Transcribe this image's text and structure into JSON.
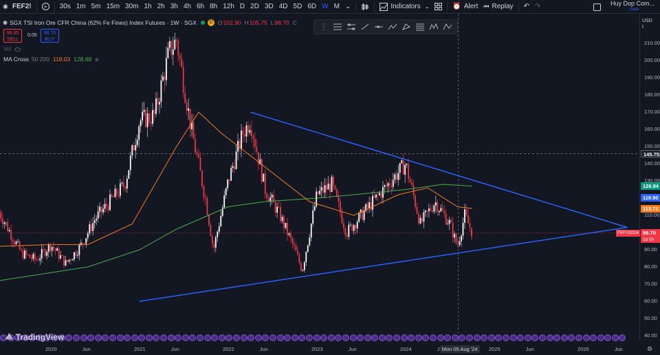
{
  "toolbar": {
    "symbol": "FEF2!",
    "add_symbol_icon": "plus-circle-icon",
    "timeframes": [
      "30s",
      "1m",
      "5m",
      "15m",
      "30m",
      "1h",
      "2h",
      "3h",
      "4h",
      "6h",
      "8h",
      "12h",
      "D",
      "2D",
      "3D",
      "4D",
      "5D",
      "6D",
      "W",
      "M"
    ],
    "active_timeframe": "W",
    "more_timeframes": "⌄",
    "indicators_label": "Indicators",
    "alert_label": "Alert",
    "replay_label": "Replay",
    "user_name": "Huy Dop Com...",
    "save_label": "Save"
  },
  "legend": {
    "title": "SGX TSI Iron Ore CFR China (62% Fe Fines) Index Futures · 1W · SGX",
    "badge": "D",
    "open_label": "O",
    "open": "102.90",
    "high_label": "H",
    "high": "105.75",
    "low_label": "L",
    "low": "98.70",
    "close_label": "C",
    "sell_price": "99.65",
    "sell_label": "SELL",
    "spread": "0.05",
    "buy_price": "99.70",
    "buy_label": "BUY",
    "vol_label": "Vol",
    "ma_label": "MA Cross",
    "ma_params": "50 200",
    "ma_val_1": "118.03",
    "ma_val_2": "128.68",
    "ma_val_3": "ø"
  },
  "price_scale": {
    "currency": "USD",
    "sub": "t",
    "ticks": [
      "210.00",
      "200.00",
      "190.00",
      "180.00",
      "170.00",
      "160.00",
      "150.00",
      "140.00",
      "130.00",
      "120.00",
      "110.00",
      "100.00",
      "90.00",
      "80.00",
      "70.00",
      "60.00",
      "50.00",
      "40.00"
    ],
    "cursor_price": "145.75",
    "labels": [
      {
        "value": "126.84",
        "color": "#089981"
      },
      {
        "value": "119.90",
        "color": "#2962ff"
      },
      {
        "value": "113.71",
        "color": "#f57c20"
      },
      {
        "value": "99.70",
        "color": "#f23645"
      }
    ],
    "countdown": "1d 5h",
    "series_tag": "FEFX2024"
  },
  "time_axis": {
    "labels": [
      "2020",
      "Jun",
      "2021",
      "Jun",
      "2022",
      "Jun",
      "2023",
      "Jun",
      "2024",
      "Jun",
      "2025",
      "Jun",
      "2026",
      "Jun"
    ],
    "cursor_label": "Mon 05 Aug '24"
  },
  "branding": {
    "logo_text": "TradingView"
  },
  "colors": {
    "up": "#089981",
    "down": "#f23645",
    "ma_fast": "#f57c20",
    "ma_slow": "#4caf50",
    "trendline": "#2962ff",
    "background": "#131722"
  },
  "chart_data": {
    "type": "candlestick",
    "title": "SGX TSI Iron Ore CFR China (62% Fe Fines) Index Futures · 1W · SGX",
    "ylim": [
      40,
      215
    ],
    "xrange": [
      "2019-06",
      "2026-09"
    ],
    "price_path": [
      [
        "2019-06",
        112
      ],
      [
        "2019-09",
        88
      ],
      [
        "2019-11",
        84
      ],
      [
        "2020-01",
        93
      ],
      [
        "2020-03",
        82
      ],
      [
        "2020-05",
        92
      ],
      [
        "2020-07",
        108
      ],
      [
        "2020-09",
        118
      ],
      [
        "2020-11",
        128
      ],
      [
        "2021-01",
        165
      ],
      [
        "2021-03",
        168
      ],
      [
        "2021-05",
        205
      ],
      [
        "2021-06",
        212
      ],
      [
        "2021-08",
        160
      ],
      [
        "2021-10",
        118
      ],
      [
        "2021-11",
        90
      ],
      [
        "2022-01",
        130
      ],
      [
        "2022-03",
        158
      ],
      [
        "2022-04",
        165
      ],
      [
        "2022-06",
        125
      ],
      [
        "2022-08",
        110
      ],
      [
        "2022-10",
        90
      ],
      [
        "2022-11",
        78
      ],
      [
        "2023-01",
        122
      ],
      [
        "2023-03",
        128
      ],
      [
        "2023-05",
        100
      ],
      [
        "2023-07",
        110
      ],
      [
        "2023-09",
        120
      ],
      [
        "2023-11",
        130
      ],
      [
        "2024-01",
        140
      ],
      [
        "2024-03",
        105
      ],
      [
        "2024-05",
        118
      ],
      [
        "2024-07",
        105
      ],
      [
        "2024-08",
        92
      ],
      [
        "2024-09",
        110
      ],
      [
        "2024-10",
        100
      ]
    ],
    "ma50": [
      [
        "2019-06",
        92
      ],
      [
        "2020-01",
        93
      ],
      [
        "2020-06",
        93
      ],
      [
        "2020-12",
        105
      ],
      [
        "2021-06",
        150
      ],
      [
        "2021-09",
        170
      ],
      [
        "2021-12",
        158
      ],
      [
        "2022-06",
        138
      ],
      [
        "2022-12",
        118
      ],
      [
        "2023-06",
        110
      ],
      [
        "2023-12",
        122
      ],
      [
        "2024-04",
        126
      ],
      [
        "2024-08",
        115
      ],
      [
        "2024-10",
        114
      ]
    ],
    "ma200": [
      [
        "2019-06",
        72
      ],
      [
        "2020-06",
        80
      ],
      [
        "2021-01",
        90
      ],
      [
        "2021-06",
        102
      ],
      [
        "2022-01",
        115
      ],
      [
        "2022-06",
        118
      ],
      [
        "2023-01",
        120
      ],
      [
        "2023-06",
        122
      ],
      [
        "2024-01",
        125
      ],
      [
        "2024-06",
        128
      ],
      [
        "2024-10",
        127
      ]
    ],
    "trendlines": [
      {
        "from": [
          "2022-04",
          170
        ],
        "to": [
          "2026-07",
          103
        ]
      },
      {
        "from": [
          "2021-01",
          60
        ],
        "to": [
          "2026-07",
          103
        ]
      }
    ],
    "crosshair": {
      "x": "2024-08-05",
      "y": 145.75
    },
    "last_price": 99.7
  }
}
